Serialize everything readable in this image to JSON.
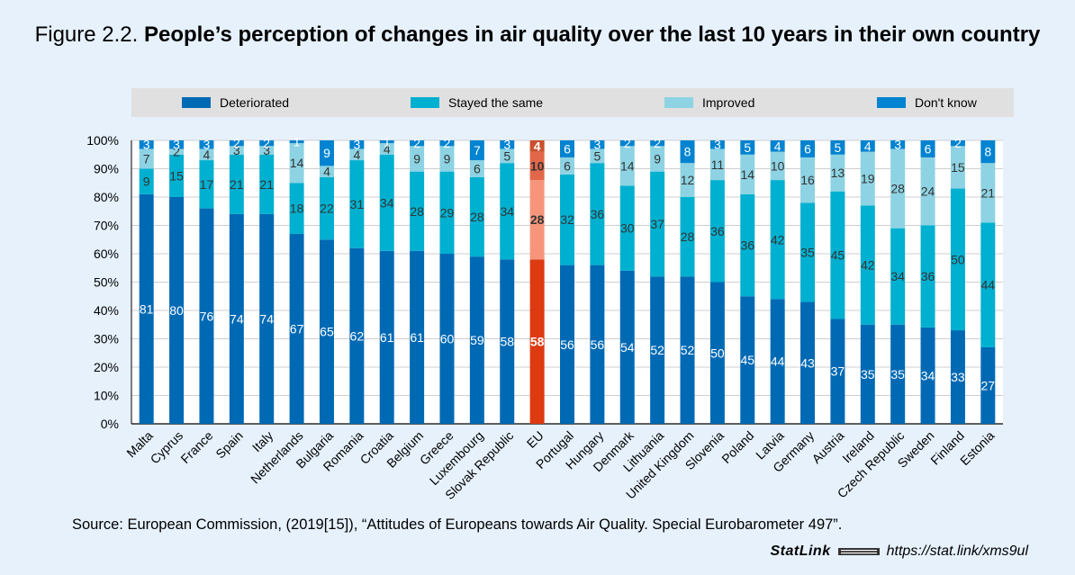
{
  "title": {
    "prefix": "Figure 2.2.",
    "main": "People’s perception of changes in air quality over the last 10 years in their own country"
  },
  "source": "Source: European Commission, (2019[15]), “Attitudes of Europeans towards Air Quality. Special Eurobarometer 497”.",
  "statlink": {
    "brand": "StatLink",
    "url": "https://stat.link/xms9ul"
  },
  "colors": {
    "deteriorated": "#0069b4",
    "stayed": "#00b0d0",
    "improved": "#8dd3e3",
    "dontknow": "#0083d0",
    "eu_deteriorated": "#dd3a12",
    "eu_stayed": "#f6957c",
    "eu_improved": "#e2664a",
    "eu_dontknow": "#c9502e",
    "background": "#e6f1fc"
  },
  "chart_data": {
    "type": "bar",
    "stacked": true,
    "ylim": [
      0,
      100
    ],
    "yticks": [
      "0%",
      "10%",
      "20%",
      "30%",
      "40%",
      "50%",
      "60%",
      "70%",
      "80%",
      "90%",
      "100%"
    ],
    "legend_position": "top",
    "highlight_category": "EU",
    "categories": [
      "Malta",
      "Cyprus",
      "France",
      "Spain",
      "Italy",
      "Netherlands",
      "Bulgaria",
      "Romania",
      "Croatia",
      "Belgium",
      "Greece",
      "Luxembourg",
      "Slovak Republic",
      "EU",
      "Portugal",
      "Hungary",
      "Denmark",
      "Lithuania",
      "United Kingdom",
      "Slovenia",
      "Poland",
      "Latvia",
      "Germany",
      "Austria",
      "Ireland",
      "Czech Republic",
      "Sweden",
      "Finland",
      "Estonia"
    ],
    "series": [
      {
        "key": "deteriorated",
        "name": "Deteriorated",
        "values": [
          81,
          80,
          76,
          74,
          74,
          67,
          65,
          62,
          61,
          61,
          60,
          59,
          58,
          58,
          56,
          56,
          54,
          52,
          52,
          50,
          45,
          44,
          43,
          37,
          35,
          35,
          34,
          33,
          27
        ]
      },
      {
        "key": "stayed",
        "name": "Stayed the same",
        "values": [
          9,
          15,
          17,
          21,
          21,
          18,
          22,
          31,
          34,
          28,
          29,
          28,
          34,
          28,
          32,
          36,
          30,
          37,
          28,
          36,
          36,
          42,
          35,
          45,
          42,
          34,
          36,
          50,
          44
        ]
      },
      {
        "key": "improved",
        "name": "Improved",
        "values": [
          7,
          2,
          4,
          3,
          3,
          14,
          4,
          4,
          4,
          9,
          9,
          6,
          5,
          10,
          6,
          5,
          14,
          9,
          12,
          11,
          14,
          10,
          16,
          13,
          19,
          28,
          24,
          15,
          21
        ]
      },
      {
        "key": "dontknow",
        "name": "Don't know",
        "values": [
          3,
          3,
          3,
          2,
          2,
          1,
          9,
          3,
          1,
          2,
          2,
          7,
          3,
          4,
          6,
          3,
          2,
          2,
          8,
          3,
          5,
          4,
          6,
          5,
          4,
          3,
          6,
          2,
          8
        ]
      }
    ]
  }
}
